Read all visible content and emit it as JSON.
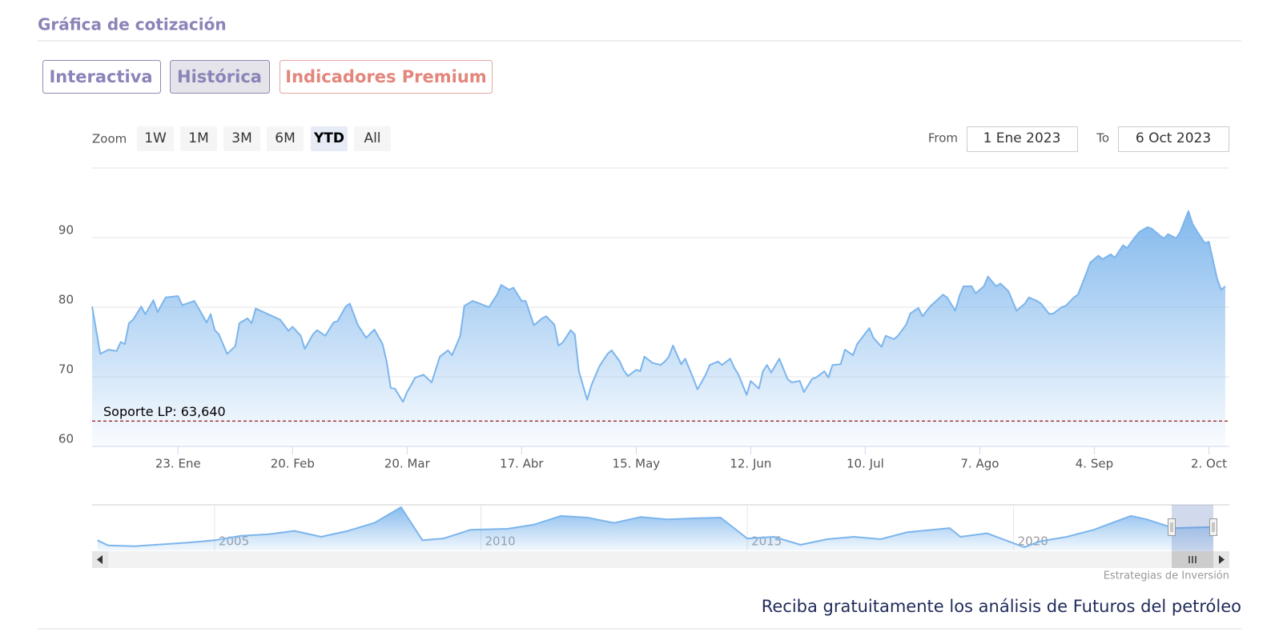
{
  "header": {
    "title": "Gráfica de cotización"
  },
  "tabs": [
    "Interactiva",
    "Histórica",
    "Indicadores Premium"
  ],
  "range_selector": {
    "label": "Zoom",
    "buttons": [
      "1W",
      "1M",
      "3M",
      "6M",
      "YTD",
      "All"
    ],
    "from_label": "From",
    "from": "1 Ene 2023",
    "to_label": "To",
    "to": "6 Oct 2023"
  },
  "chart_data": {
    "type": "area",
    "color": "#7cb5ec",
    "x": [
      "2023-01-02",
      "2023-01-04",
      "2023-01-06",
      "2023-01-08",
      "2023-01-09",
      "2023-01-10",
      "2023-01-11",
      "2023-01-12",
      "2023-01-14",
      "2023-01-15",
      "2023-01-17",
      "2023-01-18",
      "2023-01-20",
      "2023-01-23",
      "2023-01-24",
      "2023-01-27",
      "2023-01-30",
      "2023-01-31",
      "2023-02-01",
      "2023-02-02",
      "2023-02-04",
      "2023-02-06",
      "2023-02-07",
      "2023-02-09",
      "2023-02-10",
      "2023-02-11",
      "2023-02-14",
      "2023-02-17",
      "2023-02-19",
      "2023-02-20",
      "2023-02-22",
      "2023-02-23",
      "2023-02-25",
      "2023-02-26",
      "2023-02-28",
      "2023-03-02",
      "2023-03-03",
      "2023-03-05",
      "2023-03-06",
      "2023-03-08",
      "2023-03-10",
      "2023-03-12",
      "2023-03-14",
      "2023-03-15",
      "2023-03-16",
      "2023-03-17",
      "2023-03-19",
      "2023-03-20",
      "2023-03-22",
      "2023-03-24",
      "2023-03-26",
      "2023-03-28",
      "2023-03-30",
      "2023-03-31",
      "2023-04-02",
      "2023-04-03",
      "2023-04-05",
      "2023-04-06",
      "2023-04-09",
      "2023-04-11",
      "2023-04-12",
      "2023-04-14",
      "2023-04-15",
      "2023-04-17",
      "2023-04-18",
      "2023-04-20",
      "2023-04-22",
      "2023-04-23",
      "2023-04-25",
      "2023-04-26",
      "2023-04-27",
      "2023-04-29",
      "2023-04-30",
      "2023-05-01",
      "2023-05-03",
      "2023-05-04",
      "2023-05-06",
      "2023-05-08",
      "2023-05-09",
      "2023-05-11",
      "2023-05-12",
      "2023-05-13",
      "2023-05-15",
      "2023-05-16",
      "2023-05-17",
      "2023-05-19",
      "2023-05-21",
      "2023-05-22",
      "2023-05-23",
      "2023-05-24",
      "2023-05-26",
      "2023-05-27",
      "2023-05-29",
      "2023-05-30",
      "2023-06-01",
      "2023-06-02",
      "2023-06-04",
      "2023-06-05",
      "2023-06-07",
      "2023-06-08",
      "2023-06-09",
      "2023-06-11",
      "2023-06-12",
      "2023-06-14",
      "2023-06-15",
      "2023-06-16",
      "2023-06-17",
      "2023-06-19",
      "2023-06-21",
      "2023-06-22",
      "2023-06-24",
      "2023-06-25",
      "2023-06-27",
      "2023-06-28",
      "2023-06-30",
      "2023-07-01",
      "2023-07-02",
      "2023-07-04",
      "2023-07-05",
      "2023-07-07",
      "2023-07-08",
      "2023-07-11",
      "2023-07-12",
      "2023-07-14",
      "2023-07-15",
      "2023-07-17",
      "2023-07-18",
      "2023-07-20",
      "2023-07-21",
      "2023-07-23",
      "2023-07-24",
      "2023-07-26",
      "2023-07-27",
      "2023-07-29",
      "2023-07-30",
      "2023-08-01",
      "2023-08-02",
      "2023-08-03",
      "2023-08-05",
      "2023-08-06",
      "2023-08-08",
      "2023-08-09",
      "2023-08-11",
      "2023-08-12",
      "2023-08-14",
      "2023-08-16",
      "2023-08-18",
      "2023-08-19",
      "2023-08-21",
      "2023-08-22",
      "2023-08-24",
      "2023-08-25",
      "2023-08-27",
      "2023-08-28",
      "2023-08-30",
      "2023-08-31",
      "2023-09-02",
      "2023-09-03",
      "2023-09-05",
      "2023-09-06",
      "2023-09-08",
      "2023-09-09",
      "2023-09-11",
      "2023-09-12",
      "2023-09-14",
      "2023-09-15",
      "2023-09-17",
      "2023-09-18",
      "2023-09-20",
      "2023-09-21",
      "2023-09-22",
      "2023-09-24",
      "2023-09-25",
      "2023-09-27",
      "2023-09-28",
      "2023-09-29",
      "2023-10-01",
      "2023-10-02",
      "2023-10-04",
      "2023-10-05",
      "2023-10-06"
    ],
    "values": [
      80.1,
      73.3,
      73.9,
      73.7,
      75.0,
      74.7,
      77.7,
      78.2,
      80.1,
      79.0,
      81.0,
      79.3,
      81.4,
      81.6,
      80.3,
      80.9,
      77.8,
      79.0,
      76.7,
      76.1,
      73.3,
      74.4,
      77.7,
      78.4,
      77.7,
      79.8,
      79.0,
      78.2,
      76.6,
      77.2,
      75.9,
      74.0,
      76.1,
      76.7,
      75.9,
      77.8,
      78.0,
      80.1,
      80.5,
      77.4,
      75.6,
      76.8,
      74.7,
      72.2,
      68.4,
      68.3,
      66.4,
      67.8,
      69.9,
      70.3,
      69.2,
      72.9,
      73.8,
      73.1,
      75.9,
      80.2,
      80.9,
      80.7,
      80.0,
      81.8,
      83.2,
      82.5,
      82.8,
      80.9,
      80.9,
      77.4,
      78.4,
      78.7,
      77.5,
      74.5,
      74.9,
      76.7,
      76.1,
      70.8,
      66.7,
      68.7,
      71.5,
      73.3,
      73.8,
      72.2,
      70.9,
      70.1,
      71.0,
      70.8,
      72.9,
      72.0,
      71.7,
      72.2,
      72.9,
      74.5,
      71.8,
      72.6,
      69.7,
      68.2,
      70.3,
      71.7,
      72.2,
      71.7,
      72.6,
      71.3,
      70.3,
      67.4,
      69.4,
      68.3,
      70.8,
      71.7,
      70.6,
      72.6,
      69.7,
      69.2,
      69.4,
      67.8,
      69.7,
      69.9,
      70.8,
      69.9,
      71.7,
      71.8,
      73.9,
      73.1,
      74.7,
      77.0,
      75.6,
      74.3,
      75.9,
      75.4,
      75.9,
      77.5,
      79.1,
      79.9,
      78.7,
      80.2,
      80.7,
      81.8,
      81.4,
      79.5,
      81.6,
      83.0,
      83.0,
      82.0,
      83.0,
      84.4,
      83.0,
      83.4,
      82.3,
      79.5,
      80.5,
      81.4,
      80.9,
      80.5,
      79.0,
      79.1,
      80.0,
      80.2,
      81.4,
      81.8,
      84.8,
      86.4,
      87.4,
      86.9,
      87.6,
      87.1,
      88.9,
      88.5,
      90.1,
      90.8,
      91.5,
      91.3,
      90.3,
      89.9,
      90.5,
      89.9,
      90.8,
      93.8,
      92.0,
      91.0,
      89.2,
      89.4,
      84.1,
      82.5,
      83.0
    ],
    "xlim": [
      "2023-01-02",
      "2023-10-07"
    ],
    "xticks": [
      {
        "value": "2023-01-23",
        "label": "23. Ene"
      },
      {
        "value": "2023-02-20",
        "label": "20. Feb"
      },
      {
        "value": "2023-03-20",
        "label": "20. Mar"
      },
      {
        "value": "2023-04-17",
        "label": "17. Abr"
      },
      {
        "value": "2023-05-15",
        "label": "15. May"
      },
      {
        "value": "2023-06-12",
        "label": "12. Jun"
      },
      {
        "value": "2023-07-10",
        "label": "10. Jul"
      },
      {
        "value": "2023-08-07",
        "label": "7. Ago"
      },
      {
        "value": "2023-09-04",
        "label": "4. Sep"
      },
      {
        "value": "2023-10-02",
        "label": "2. Oct"
      }
    ],
    "ylim": [
      60,
      100
    ],
    "yticks": [
      60,
      70,
      80,
      90
    ],
    "grid": true,
    "annotations": [
      {
        "label": "Soporte LP: 63,640",
        "value": 63.64,
        "color": "#8b0000"
      }
    ]
  },
  "navigator": {
    "type": "area",
    "color": "#7cb5ec",
    "x": [
      2002.8,
      2003.0,
      2003.5,
      2004.0,
      2004.5,
      2005.0,
      2005.5,
      2006.0,
      2006.5,
      2007.0,
      2007.5,
      2008.0,
      2008.5,
      2008.9,
      2009.3,
      2009.8,
      2010.5,
      2011.0,
      2011.5,
      2012.0,
      2012.5,
      2013.0,
      2013.5,
      2014.0,
      2014.5,
      2015.0,
      2015.5,
      2016.0,
      2016.5,
      2017.0,
      2017.5,
      2018.0,
      2018.8,
      2019.0,
      2019.5,
      2020.2,
      2020.5,
      2021.0,
      2021.5,
      2022.2,
      2022.5,
      2023.0,
      2023.75
    ],
    "values": [
      45,
      30,
      28,
      33,
      38,
      45,
      58,
      62,
      72,
      55,
      72,
      95,
      140,
      45,
      50,
      75,
      78,
      90,
      115,
      110,
      95,
      112,
      105,
      108,
      110,
      50,
      55,
      32,
      48,
      55,
      48,
      68,
      80,
      55,
      65,
      25,
      42,
      55,
      75,
      115,
      105,
      80,
      83
    ],
    "xlim": [
      2002.7,
      2024.05
    ],
    "xticks": [
      2005,
      2010,
      2015,
      2020
    ]
  },
  "credits": "Estrategias de Inversión",
  "footer": "Reciba gratuitamente los análisis de Futuros del petróleo"
}
